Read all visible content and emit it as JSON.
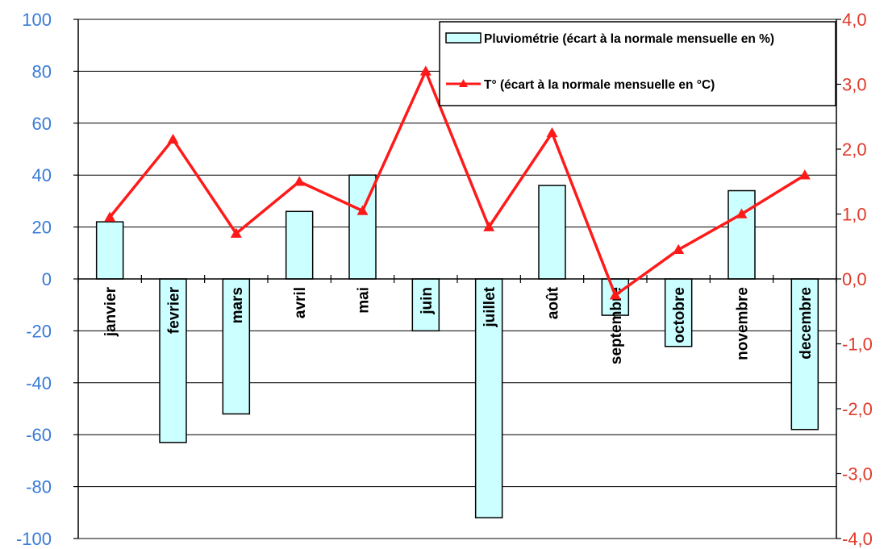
{
  "colors": {
    "bar_fill": "#ccffff",
    "bar_stroke": "#000000",
    "line": "#ff1a1a",
    "left_axis_text": "#3a7bd5",
    "right_axis_text": "#e03a2a",
    "grid": "#000000"
  },
  "chart_data": {
    "type": "bar",
    "title": "",
    "xlabel": "",
    "ylabel": "",
    "categories": [
      "janvier",
      "fevrier",
      "mars",
      "avril",
      "mai",
      "juin",
      "juillet",
      "août",
      "septembre",
      "octobre",
      "novembre",
      "decembre"
    ],
    "ylim": [
      -100,
      100
    ],
    "y2lim": [
      -4,
      4
    ],
    "yticks": [
      "100",
      "80",
      "60",
      "40",
      "20",
      "0",
      "-20",
      "-40",
      "-60",
      "-80",
      "-100"
    ],
    "y2ticks": [
      "4,0",
      "3,0",
      "2,0",
      "1,0",
      "0,0",
      "-1,0",
      "-2,0",
      "-3,0",
      "-4,0"
    ],
    "grid": true,
    "legend_position": "top-right",
    "series": [
      {
        "name": "Pluviométrie (écart à la normale mensuelle en %)",
        "type": "bar",
        "axis": "left",
        "values": [
          22,
          -63,
          -52,
          26,
          40,
          -20,
          -92,
          36,
          -14,
          -26,
          34,
          -58
        ]
      },
      {
        "name": "T° (écart à la normale mensuelle en °C)",
        "type": "line",
        "axis": "right",
        "marker": "triangle",
        "values": [
          0.95,
          2.15,
          0.7,
          1.5,
          1.05,
          3.2,
          0.8,
          2.25,
          -0.25,
          0.45,
          1.0,
          1.6
        ]
      }
    ]
  }
}
